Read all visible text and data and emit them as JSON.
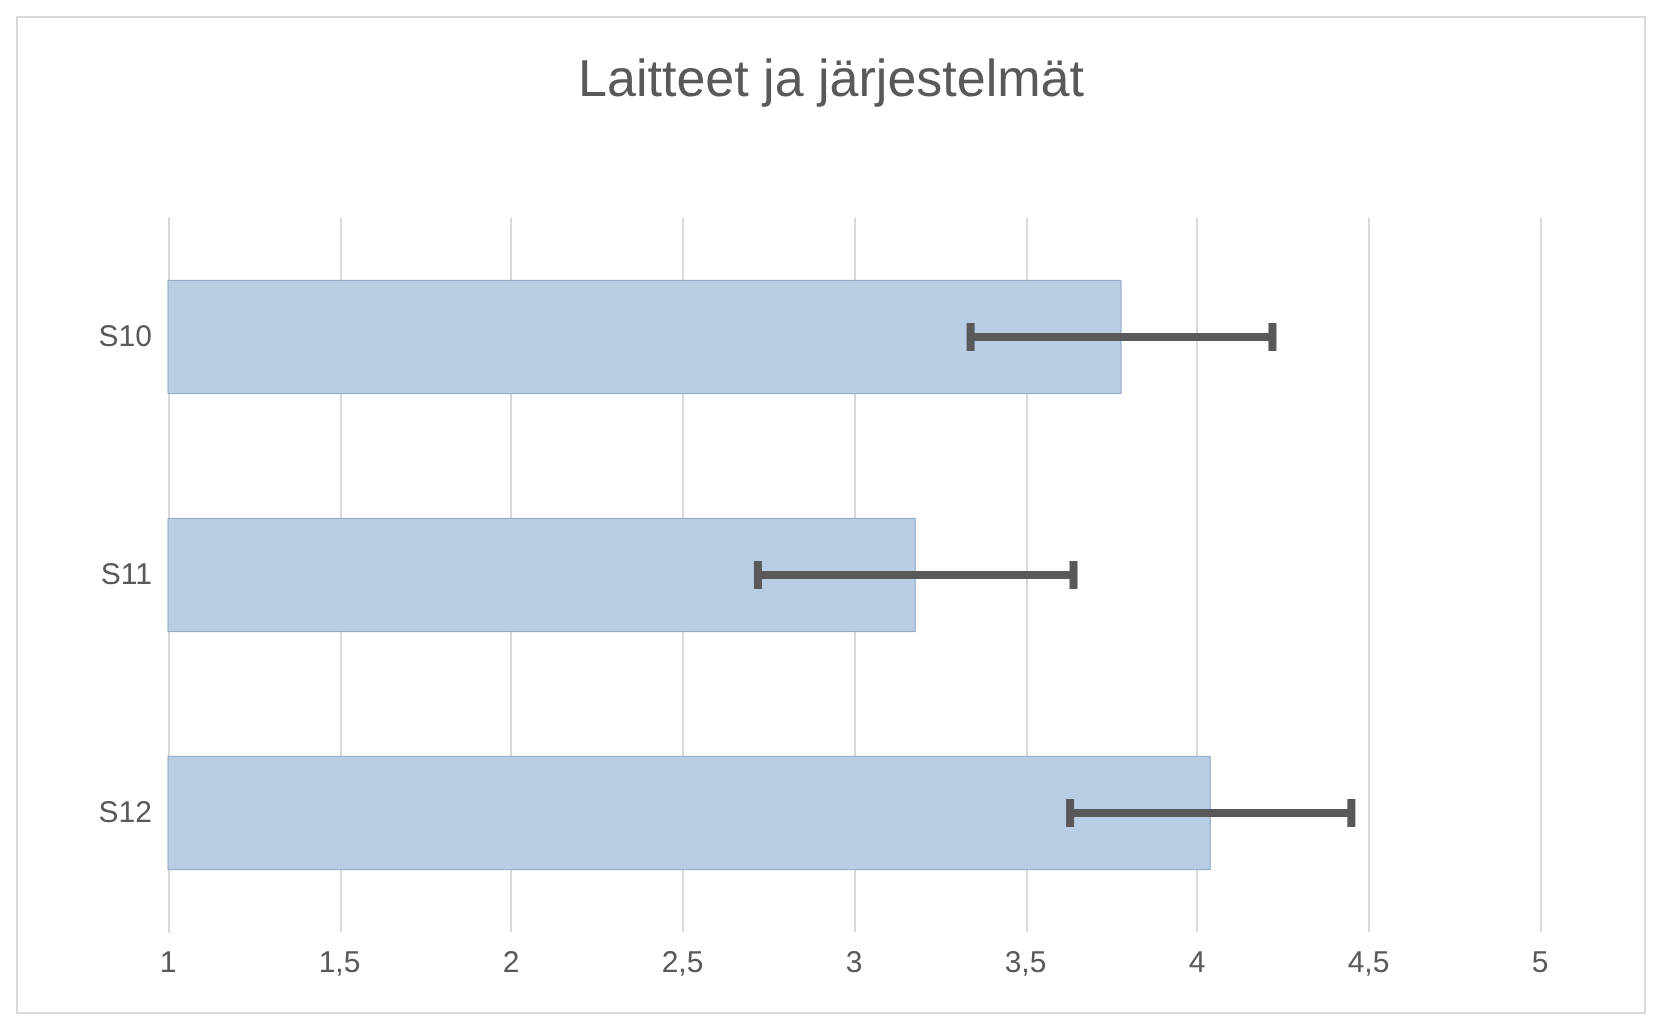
{
  "chart_data": {
    "type": "bar",
    "orientation": "horizontal",
    "title": "Laitteet ja järjestelmät",
    "categories": [
      "S10",
      "S11",
      "S12"
    ],
    "values": [
      3.78,
      3.18,
      4.04
    ],
    "errors": [
      0.44,
      0.46,
      0.41
    ],
    "color": "#b9cde5",
    "xlim": [
      1,
      5
    ],
    "xticks": [
      1,
      {
        "value": 1.5,
        "label": "1,5"
      },
      2,
      {
        "value": 2.5,
        "label": "2,5"
      },
      3,
      {
        "value": 3.5,
        "label": "3,5"
      },
      4,
      {
        "value": 4.5,
        "label": "4,5"
      },
      5
    ],
    "grid": "x"
  }
}
